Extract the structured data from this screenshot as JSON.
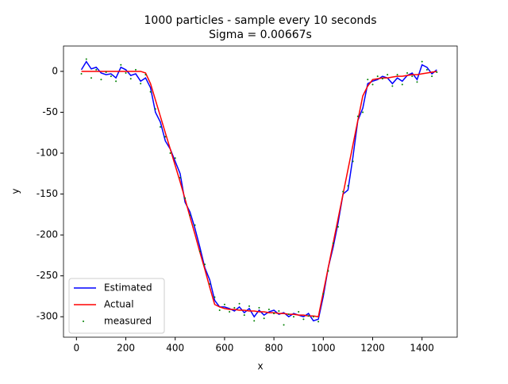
{
  "chart_data": {
    "type": "line",
    "title": "1000 particles - sample every 10 seconds",
    "subtitle": "Sigma = 0.00667s",
    "x_label": "x",
    "y_label": "y",
    "x": [
      20,
      40,
      60,
      80,
      100,
      120,
      140,
      160,
      180,
      200,
      220,
      240,
      260,
      280,
      300,
      320,
      340,
      360,
      380,
      400,
      420,
      440,
      460,
      480,
      500,
      520,
      540,
      560,
      580,
      600,
      620,
      640,
      660,
      680,
      700,
      720,
      740,
      760,
      780,
      800,
      820,
      840,
      860,
      880,
      900,
      920,
      940,
      960,
      980,
      1000,
      1020,
      1040,
      1060,
      1080,
      1100,
      1120,
      1140,
      1160,
      1180,
      1200,
      1220,
      1240,
      1260,
      1280,
      1300,
      1320,
      1340,
      1360,
      1380,
      1400,
      1420,
      1440,
      1460
    ],
    "series": [
      {
        "name": "Estimated",
        "color": "#0000ff",
        "style": "line",
        "values": [
          2,
          12,
          3,
          5,
          -2,
          -4,
          -3,
          -8,
          5,
          2,
          -5,
          -3,
          -12,
          -8,
          -20,
          -50,
          -62,
          -85,
          -95,
          -110,
          -125,
          -160,
          -172,
          -192,
          -215,
          -240,
          -255,
          -280,
          -288,
          -288,
          -290,
          -293,
          -288,
          -295,
          -290,
          -300,
          -292,
          -298,
          -294,
          -292,
          -297,
          -295,
          -300,
          -296,
          -298,
          -300,
          -296,
          -305,
          -303,
          -275,
          -240,
          -215,
          -185,
          -150,
          -145,
          -105,
          -60,
          -45,
          -15,
          -12,
          -10,
          -6,
          -8,
          -15,
          -8,
          -12,
          -5,
          -2,
          -10,
          8,
          5,
          -3,
          2
        ]
      },
      {
        "name": "Actual",
        "color": "#ff0000",
        "style": "line",
        "values": [
          0,
          0,
          0,
          0,
          0,
          0,
          0,
          0,
          0,
          0,
          0,
          0,
          0,
          -2,
          -15,
          -35,
          -55,
          -75,
          -95,
          -115,
          -135,
          -156,
          -178,
          -199,
          -221,
          -242,
          -264,
          -285,
          -288,
          -290,
          -291,
          -291,
          -292,
          -292,
          -293,
          -293,
          -294,
          -294,
          -295,
          -295,
          -296,
          -296,
          -297,
          -297,
          -298,
          -298,
          -299,
          -299,
          -300,
          -270,
          -240,
          -210,
          -180,
          -150,
          -120,
          -90,
          -60,
          -30,
          -18,
          -10,
          -9,
          -8,
          -8,
          -7,
          -6,
          -6,
          -5,
          -4,
          -4,
          -3,
          -2,
          -1,
          0
        ]
      },
      {
        "name": "measured",
        "color": "#008000",
        "style": "points",
        "values": [
          -3,
          15,
          -8,
          2,
          -10,
          -1,
          -6,
          -12,
          8,
          -2,
          -9,
          2,
          -15,
          -4,
          -25,
          -46,
          -68,
          -80,
          -100,
          -106,
          -130,
          -155,
          -176,
          -188,
          -220,
          -236,
          -260,
          -276,
          -292,
          -285,
          -294,
          -289,
          -284,
          -298,
          -287,
          -305,
          -289,
          -302,
          -291,
          -296,
          -293,
          -310,
          -297,
          -300,
          -294,
          -303,
          -299,
          -300,
          -306,
          -272,
          -244,
          -210,
          -190,
          -147,
          -140,
          -110,
          -55,
          -50,
          -10,
          -16,
          -6,
          -9,
          -4,
          -18,
          -4,
          -16,
          -2,
          -6,
          -13,
          12,
          2,
          -6,
          -1
        ]
      }
    ],
    "xlim": [
      -52.5,
      1542.5
    ],
    "ylim": [
      -325,
      31
    ],
    "xticks": [
      0,
      200,
      400,
      600,
      800,
      1000,
      1200,
      1400
    ],
    "yticks": [
      0,
      -50,
      -100,
      -150,
      -200,
      -250,
      -300
    ],
    "legend": "lower left"
  }
}
